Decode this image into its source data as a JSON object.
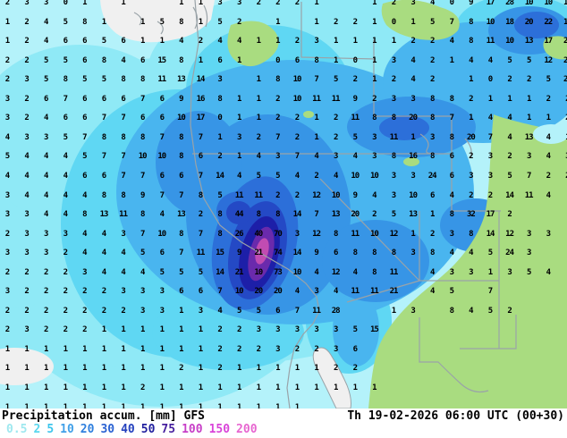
{
  "map": {
    "description": "GFS precipitation accumulation forecast map, western USA and eastern Pacific",
    "colors": {
      "sea_no_rain": "#f0f0f0",
      "land_no_rain": "#a9dc80",
      "border_lines": "#9aa3a8",
      "band_0_5": "#b4f2fa",
      "band_2": "#8fe9f6",
      "band_5": "#5fd7f3",
      "band_10": "#49b5ef",
      "band_20": "#3795e6",
      "band_30": "#2c6fd9",
      "band_40": "#2449c5",
      "band_50": "#1d1fa8",
      "band_75": "#6a2aac",
      "band_100": "#c14cb2"
    },
    "grid": {
      "note": "precipitation values in mm at model gridpoints, rows top to bottom",
      "rows": [
        [
          "2",
          "3",
          "3",
          "0",
          "1",
          "",
          "1",
          "",
          "",
          "1",
          "1",
          "3",
          "3",
          "2",
          "2",
          "2",
          "1",
          "",
          "",
          "1",
          "2",
          "3",
          "4",
          "0",
          "9",
          "17",
          "28",
          "10",
          "10",
          "14"
        ],
        [
          "1",
          "2",
          "4",
          "5",
          "8",
          "1",
          "",
          "1",
          "5",
          "8",
          "1",
          "5",
          "2",
          "",
          "1",
          "",
          "1",
          "2",
          "2",
          "1",
          "0",
          "1",
          "5",
          "7",
          "8",
          "10",
          "18",
          "20",
          "22",
          "14"
        ],
        [
          "1",
          "2",
          "4",
          "6",
          "6",
          "5",
          "6",
          "1",
          "1",
          "4",
          "2",
          "4",
          "4",
          "1",
          "1",
          "2",
          "3",
          "1",
          "1",
          "1",
          "1",
          "2",
          "2",
          "4",
          "8",
          "11",
          "10",
          "13",
          "17",
          "27"
        ],
        [
          "2",
          "2",
          "5",
          "5",
          "6",
          "8",
          "4",
          "6",
          "15",
          "8",
          "1",
          "6",
          "1",
          "",
          "0",
          "6",
          "8",
          "1",
          "0",
          "1",
          "3",
          "4",
          "2",
          "1",
          "4",
          "4",
          "5",
          "5",
          "12",
          "24"
        ],
        [
          "2",
          "3",
          "5",
          "8",
          "5",
          "5",
          "8",
          "8",
          "11",
          "13",
          "14",
          "3",
          "",
          "1",
          "8",
          "10",
          "7",
          "5",
          "2",
          "1",
          "2",
          "4",
          "2",
          "",
          "1",
          "0",
          "2",
          "2",
          "5",
          "25"
        ],
        [
          "3",
          "2",
          "6",
          "7",
          "6",
          "6",
          "6",
          "7",
          "6",
          "9",
          "16",
          "8",
          "1",
          "1",
          "2",
          "10",
          "11",
          "11",
          "9",
          "2",
          "3",
          "3",
          "8",
          "8",
          "2",
          "1",
          "1",
          "1",
          "2",
          "2"
        ],
        [
          "3",
          "2",
          "4",
          "6",
          "6",
          "7",
          "7",
          "6",
          "6",
          "10",
          "17",
          "0",
          "1",
          "1",
          "2",
          "2",
          "1",
          "2",
          "11",
          "8",
          "8",
          "20",
          "8",
          "7",
          "1",
          "4",
          "4",
          "1",
          "1",
          "2"
        ],
        [
          "4",
          "3",
          "3",
          "5",
          "7",
          "8",
          "8",
          "8",
          "7",
          "8",
          "7",
          "1",
          "3",
          "2",
          "7",
          "2",
          "1",
          "2",
          "5",
          "3",
          "11",
          "1",
          "3",
          "8",
          "20",
          "7",
          "4",
          "13",
          "4",
          "1"
        ],
        [
          "5",
          "4",
          "4",
          "4",
          "5",
          "7",
          "7",
          "10",
          "10",
          "8",
          "6",
          "2",
          "1",
          "4",
          "3",
          "7",
          "4",
          "3",
          "4",
          "3",
          "8",
          "16",
          "8",
          "6",
          "2",
          "3",
          "2",
          "3",
          "4",
          "3"
        ],
        [
          "4",
          "4",
          "4",
          "4",
          "6",
          "6",
          "7",
          "7",
          "6",
          "6",
          "7",
          "14",
          "4",
          "5",
          "5",
          "4",
          "2",
          "4",
          "10",
          "10",
          "3",
          "3",
          "24",
          "6",
          "3",
          "3",
          "5",
          "7",
          "2",
          "2"
        ],
        [
          "3",
          "4",
          "4",
          "4",
          "4",
          "8",
          "8",
          "9",
          "7",
          "7",
          "8",
          "5",
          "11",
          "11",
          "2",
          "2",
          "12",
          "10",
          "9",
          "4",
          "3",
          "10",
          "6",
          "4",
          "2",
          "2",
          "14",
          "11",
          "4",
          ""
        ],
        [
          "3",
          "3",
          "4",
          "4",
          "8",
          "13",
          "11",
          "8",
          "4",
          "13",
          "2",
          "8",
          "44",
          "8",
          "8",
          "14",
          "7",
          "13",
          "20",
          "2",
          "5",
          "13",
          "1",
          "8",
          "32",
          "17",
          "2",
          "",
          "",
          ""
        ],
        [
          "2",
          "3",
          "3",
          "3",
          "4",
          "4",
          "3",
          "7",
          "10",
          "8",
          "7",
          "8",
          "26",
          "40",
          "70",
          "3",
          "12",
          "8",
          "11",
          "10",
          "12",
          "1",
          "2",
          "3",
          "8",
          "14",
          "12",
          "3",
          "3",
          ""
        ],
        [
          "3",
          "3",
          "3",
          "2",
          "4",
          "4",
          "4",
          "5",
          "6",
          "7",
          "11",
          "15",
          "9",
          "21",
          "74",
          "14",
          "9",
          "6",
          "8",
          "8",
          "8",
          "3",
          "8",
          "4",
          "4",
          "5",
          "24",
          "3",
          "",
          ""
        ],
        [
          "2",
          "2",
          "2",
          "2",
          "3",
          "4",
          "4",
          "4",
          "5",
          "5",
          "5",
          "14",
          "21",
          "10",
          "73",
          "10",
          "4",
          "12",
          "4",
          "8",
          "11",
          "",
          "4",
          "3",
          "3",
          "1",
          "3",
          "5",
          "4",
          ""
        ],
        [
          "3",
          "2",
          "2",
          "2",
          "2",
          "2",
          "3",
          "3",
          "3",
          "6",
          "6",
          "7",
          "10",
          "20",
          "20",
          "4",
          "3",
          "4",
          "11",
          "11",
          "21",
          "",
          "4",
          "5",
          "",
          "7",
          "",
          "",
          "",
          ""
        ],
        [
          "2",
          "2",
          "2",
          "2",
          "2",
          "2",
          "2",
          "3",
          "3",
          "1",
          "3",
          "4",
          "5",
          "5",
          "6",
          "7",
          "11",
          "28",
          "",
          "",
          "1",
          "3",
          "",
          "8",
          "4",
          "5",
          "2",
          "",
          "",
          ""
        ],
        [
          "2",
          "3",
          "2",
          "2",
          "2",
          "1",
          "1",
          "1",
          "1",
          "1",
          "1",
          "2",
          "2",
          "3",
          "3",
          "3",
          "3",
          "3",
          "5",
          "15",
          "",
          "",
          "",
          "",
          "",
          "",
          "",
          "",
          "",
          ""
        ],
        [
          "1",
          "1",
          "1",
          "1",
          "1",
          "1",
          "1",
          "1",
          "1",
          "1",
          "1",
          "2",
          "2",
          "2",
          "3",
          "2",
          "2",
          "3",
          "6",
          "",
          "",
          "",
          "",
          "",
          "",
          "",
          "",
          "",
          "",
          ""
        ],
        [
          "1",
          "1",
          "1",
          "1",
          "1",
          "1",
          "1",
          "1",
          "1",
          "2",
          "1",
          "2",
          "1",
          "1",
          "1",
          "1",
          "1",
          "2",
          "2",
          "",
          "",
          "",
          "",
          "",
          "",
          "",
          "",
          "",
          "",
          ""
        ],
        [
          "1",
          "1",
          "1",
          "1",
          "1",
          "1",
          "1",
          "2",
          "1",
          "1",
          "1",
          "1",
          "1",
          "1",
          "1",
          "1",
          "1",
          "1",
          "1",
          "1",
          "",
          "",
          "",
          "",
          "",
          "",
          "",
          "",
          "",
          ""
        ],
        [
          "1",
          "1",
          "1",
          "1",
          "1",
          "1",
          "1",
          "1",
          "1",
          "1",
          "1",
          "1",
          "1",
          "1",
          "1",
          "1",
          "",
          "",
          "",
          "",
          "",
          "",
          "",
          "",
          "",
          "",
          "",
          "",
          "",
          ""
        ]
      ]
    }
  },
  "footer": {
    "title": "Precipitation accum. [mm] GFS",
    "datetime": "Th 19-02-2026 06:00 UTC (00+30)",
    "legend": {
      "items": [
        {
          "label": "0.5",
          "color": "#9fe8ef"
        },
        {
          "label": "2",
          "color": "#59d7ee"
        },
        {
          "label": "5",
          "color": "#3cc5ec"
        },
        {
          "label": "10",
          "color": "#41a0e8"
        },
        {
          "label": "20",
          "color": "#2f7fde"
        },
        {
          "label": "30",
          "color": "#2a62d2"
        },
        {
          "label": "40",
          "color": "#2441be"
        },
        {
          "label": "50",
          "color": "#201f9e"
        },
        {
          "label": "75",
          "color": "#461f9e"
        },
        {
          "label": "100",
          "color": "#c73fc7"
        },
        {
          "label": "150",
          "color": "#d944d9"
        },
        {
          "label": "200",
          "color": "#e766d0"
        }
      ]
    }
  }
}
